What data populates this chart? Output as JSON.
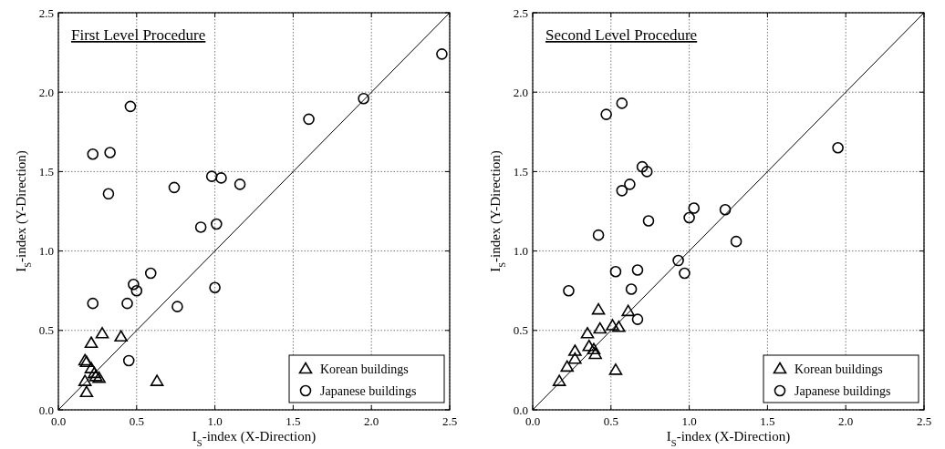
{
  "chart_data": [
    {
      "type": "scatter",
      "title": "First Level Procedure",
      "xlabel": "I$_{S}$-index  (X-Direction)",
      "ylabel": "I$_{S}$-index  (Y-Direction)",
      "xlim": [
        0,
        2.5
      ],
      "ylim": [
        0,
        2.5
      ],
      "xticks": [
        {
          "value": 0,
          "label": "0.0"
        },
        0.5,
        {
          "value": 1,
          "label": "1.0"
        },
        1.5,
        {
          "value": 2,
          "label": "2.0"
        },
        2.5
      ],
      "yticks": [
        {
          "value": 0,
          "label": "0.0"
        },
        0.5,
        {
          "value": 1,
          "label": "1.0"
        },
        1.5,
        {
          "value": 2,
          "label": "2.0"
        },
        2.5
      ],
      "grid": true,
      "legend": "bottom right",
      "series": [
        {
          "name": null,
          "type": "line",
          "color": "#000000",
          "x": [
            0,
            2.5
          ],
          "values": [
            0,
            2.5
          ]
        },
        {
          "name": "Korean buildings",
          "color": "#000000",
          "marker": "triangle",
          "x": [
            0.17,
            0.18,
            0.21,
            0.28,
            0.4,
            0.21,
            0.23,
            0.24,
            0.26,
            0.17,
            0.18,
            0.63
          ],
          "values": [
            0.31,
            0.3,
            0.42,
            0.48,
            0.46,
            0.26,
            0.23,
            0.21,
            0.2,
            0.18,
            0.11,
            0.18
          ]
        },
        {
          "name": "Japanese buildings",
          "color": "#000000",
          "marker": "circle",
          "x": [
            0.22,
            0.33,
            0.46,
            0.32,
            0.74,
            0.98,
            1.04,
            1.16,
            0.91,
            1.01,
            1.6,
            1.95,
            2.45,
            0.22,
            0.44,
            0.48,
            0.5,
            0.59,
            0.76,
            1.0,
            0.45
          ],
          "values": [
            1.61,
            1.62,
            1.91,
            1.36,
            1.4,
            1.47,
            1.46,
            1.42,
            1.15,
            1.17,
            1.83,
            1.96,
            2.24,
            0.67,
            0.67,
            0.79,
            0.75,
            0.86,
            0.65,
            0.77,
            0.31
          ]
        }
      ]
    },
    {
      "type": "scatter",
      "title": "Second Level Procedure",
      "xlabel": "I$_{S}$-index  (X-Direction)",
      "ylabel": "I$_{S}$-index  (Y-Direction)",
      "xlim": [
        0,
        2.5
      ],
      "ylim": [
        0,
        2.5
      ],
      "xticks": [
        {
          "value": 0,
          "label": "0.0"
        },
        0.5,
        {
          "value": 1,
          "label": "1.0"
        },
        1.5,
        {
          "value": 2,
          "label": "2.0"
        },
        2.5
      ],
      "yticks": [
        {
          "value": 0,
          "label": "0.0"
        },
        0.5,
        {
          "value": 1,
          "label": "1.0"
        },
        1.5,
        {
          "value": 2,
          "label": "2.0"
        },
        2.5
      ],
      "grid": true,
      "legend": "bottom right",
      "series": [
        {
          "name": null,
          "type": "line",
          "color": "#000000",
          "x": [
            0,
            2.5
          ],
          "values": [
            0,
            2.5
          ]
        },
        {
          "name": "Korean buildings",
          "color": "#000000",
          "marker": "triangle",
          "x": [
            0.17,
            0.22,
            0.27,
            0.27,
            0.35,
            0.36,
            0.39,
            0.4,
            0.42,
            0.43,
            0.51,
            0.55,
            0.61,
            0.53
          ],
          "values": [
            0.18,
            0.27,
            0.32,
            0.37,
            0.48,
            0.4,
            0.38,
            0.35,
            0.63,
            0.51,
            0.53,
            0.52,
            0.62,
            0.25
          ]
        },
        {
          "name": "Japanese buildings",
          "color": "#000000",
          "marker": "circle",
          "x": [
            0.47,
            0.57,
            0.57,
            0.62,
            0.7,
            0.73,
            0.74,
            1.0,
            1.03,
            1.23,
            1.3,
            1.95,
            0.42,
            0.23,
            0.53,
            0.67,
            0.63,
            0.93,
            0.97,
            0.67
          ],
          "values": [
            1.86,
            1.93,
            1.38,
            1.42,
            1.53,
            1.5,
            1.19,
            1.21,
            1.27,
            1.26,
            1.06,
            1.65,
            1.1,
            0.75,
            0.87,
            0.88,
            0.76,
            0.94,
            0.86,
            0.57
          ]
        }
      ]
    }
  ]
}
